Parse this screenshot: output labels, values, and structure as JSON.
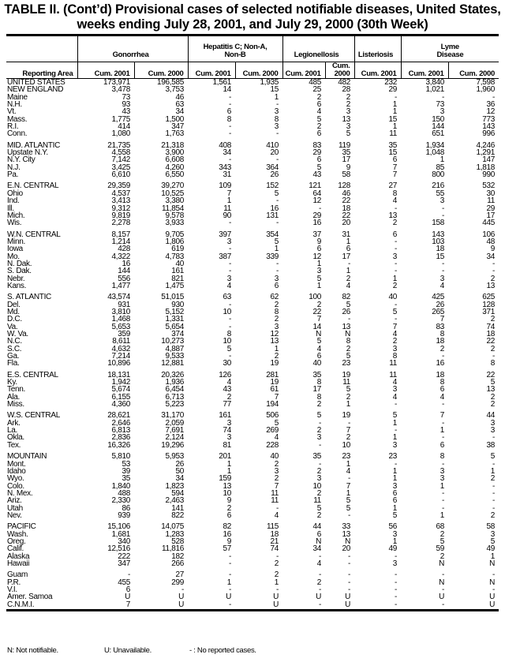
{
  "title_line1": "TABLE II. (Cont’d) Provisional cases of selected notifiable diseases, United States,",
  "title_line2": "weeks ending July 28, 2001, and July 29, 2000 (30th Week)",
  "header": {
    "reporting_area": "Reporting Area",
    "diseases": [
      "Gonorrhea",
      "Hepatitis C; Non-A, Non-B",
      "Legionellosis",
      "Listeriosis",
      "Lyme Disease"
    ],
    "subcolumns": [
      "Cum. 2001",
      "Cum. 2000",
      "Cum. 2001",
      "Cum. 2000",
      "Cum. 2001",
      "Cum. 2000",
      "Cum. 2001",
      "Cum. 2001",
      "Cum. 2000"
    ]
  },
  "groups": [
    {
      "rows": [
        [
          "UNITED STATES",
          "173,971",
          "196,585",
          "1,561",
          "1,935",
          "485",
          "482",
          "232",
          "3,840",
          "7,598"
        ]
      ]
    },
    {
      "rows": [
        [
          "NEW ENGLAND",
          "3,478",
          "3,753",
          "14",
          "15",
          "25",
          "28",
          "29",
          "1,021",
          "1,960"
        ],
        [
          "Maine",
          "73",
          "46",
          "-",
          "1",
          "2",
          "2",
          "-",
          "-",
          "-"
        ],
        [
          "N.H.",
          "93",
          "63",
          "-",
          "-",
          "6",
          "2",
          "1",
          "73",
          "36"
        ],
        [
          "Vt.",
          "43",
          "34",
          "6",
          "3",
          "4",
          "3",
          "1",
          "3",
          "12"
        ],
        [
          "Mass.",
          "1,775",
          "1,500",
          "8",
          "8",
          "5",
          "13",
          "15",
          "150",
          "773"
        ],
        [
          "R.I.",
          "414",
          "347",
          "-",
          "3",
          "2",
          "3",
          "1",
          "144",
          "143"
        ],
        [
          "Conn.",
          "1,080",
          "1,763",
          "-",
          "-",
          "6",
          "5",
          "11",
          "651",
          "996"
        ]
      ]
    },
    {
      "rows": [
        [
          "MID. ATLANTIC",
          "21,735",
          "21,318",
          "408",
          "410",
          "83",
          "119",
          "35",
          "1,934",
          "4,246"
        ],
        [
          "Upstate N.Y.",
          "4,558",
          "3,900",
          "34",
          "20",
          "29",
          "35",
          "15",
          "1,048",
          "1,291"
        ],
        [
          "N.Y. City",
          "7,142",
          "6,608",
          "-",
          "-",
          "6",
          "17",
          "6",
          "1",
          "147"
        ],
        [
          "N.J.",
          "3,425",
          "4,260",
          "343",
          "364",
          "5",
          "9",
          "7",
          "85",
          "1,818"
        ],
        [
          "Pa.",
          "6,610",
          "6,550",
          "31",
          "26",
          "43",
          "58",
          "7",
          "800",
          "990"
        ]
      ]
    },
    {
      "rows": [
        [
          "E.N. CENTRAL",
          "29,359",
          "39,270",
          "109",
          "152",
          "121",
          "128",
          "27",
          "216",
          "532"
        ],
        [
          "Ohio",
          "4,537",
          "10,525",
          "7",
          "5",
          "64",
          "46",
          "8",
          "55",
          "30"
        ],
        [
          "Ind.",
          "3,413",
          "3,380",
          "1",
          "-",
          "12",
          "22",
          "4",
          "3",
          "11"
        ],
        [
          "Ill.",
          "9,312",
          "11,854",
          "11",
          "16",
          "-",
          "18",
          "-",
          "-",
          "29"
        ],
        [
          "Mich.",
          "9,819",
          "9,578",
          "90",
          "131",
          "29",
          "22",
          "13",
          "-",
          "17"
        ],
        [
          "Wis.",
          "2,278",
          "3,933",
          "-",
          "-",
          "16",
          "20",
          "2",
          "158",
          "445"
        ]
      ]
    },
    {
      "rows": [
        [
          "W.N. CENTRAL",
          "8,157",
          "9,705",
          "397",
          "354",
          "37",
          "31",
          "6",
          "143",
          "106"
        ],
        [
          "Minn.",
          "1,214",
          "1,806",
          "3",
          "5",
          "9",
          "1",
          "-",
          "103",
          "48"
        ],
        [
          "Iowa",
          "428",
          "619",
          "-",
          "1",
          "6",
          "6",
          "-",
          "18",
          "9"
        ],
        [
          "Mo.",
          "4,322",
          "4,783",
          "387",
          "339",
          "12",
          "17",
          "3",
          "15",
          "34"
        ],
        [
          "N. Dak.",
          "16",
          "40",
          "-",
          "-",
          "1",
          "-",
          "-",
          "-",
          "-"
        ],
        [
          "S. Dak.",
          "144",
          "161",
          "-",
          "-",
          "3",
          "1",
          "-",
          "-",
          "-"
        ],
        [
          "Nebr.",
          "556",
          "821",
          "3",
          "3",
          "5",
          "2",
          "1",
          "3",
          "2"
        ],
        [
          "Kans.",
          "1,477",
          "1,475",
          "4",
          "6",
          "1",
          "4",
          "2",
          "4",
          "13"
        ]
      ]
    },
    {
      "rows": [
        [
          "S. ATLANTIC",
          "43,574",
          "51,015",
          "63",
          "62",
          "100",
          "82",
          "40",
          "425",
          "625"
        ],
        [
          "Del.",
          "931",
          "930",
          "-",
          "2",
          "2",
          "5",
          "-",
          "26",
          "128"
        ],
        [
          "Md.",
          "3,810",
          "5,152",
          "10",
          "8",
          "22",
          "26",
          "5",
          "265",
          "371"
        ],
        [
          "D.C.",
          "1,468",
          "1,331",
          "-",
          "2",
          "7",
          "-",
          "-",
          "7",
          "2"
        ],
        [
          "Va.",
          "5,653",
          "5,654",
          "-",
          "3",
          "14",
          "13",
          "7",
          "83",
          "74"
        ],
        [
          "W. Va.",
          "359",
          "374",
          "8",
          "12",
          "N",
          "N",
          "4",
          "8",
          "18"
        ],
        [
          "N.C.",
          "8,611",
          "10,273",
          "10",
          "13",
          "5",
          "8",
          "2",
          "18",
          "22"
        ],
        [
          "S.C.",
          "4,632",
          "4,887",
          "5",
          "1",
          "4",
          "2",
          "3",
          "2",
          "2"
        ],
        [
          "Ga.",
          "7,214",
          "9,533",
          "-",
          "2",
          "6",
          "5",
          "8",
          "-",
          "-"
        ],
        [
          "Fla.",
          "10,896",
          "12,881",
          "30",
          "19",
          "40",
          "23",
          "11",
          "16",
          "8"
        ]
      ]
    },
    {
      "rows": [
        [
          "E.S. CENTRAL",
          "18,131",
          "20,326",
          "126",
          "281",
          "35",
          "19",
          "11",
          "18",
          "22"
        ],
        [
          "Ky.",
          "1,942",
          "1,936",
          "4",
          "19",
          "8",
          "11",
          "4",
          "8",
          "5"
        ],
        [
          "Tenn.",
          "5,674",
          "6,454",
          "43",
          "61",
          "17",
          "5",
          "3",
          "6",
          "13"
        ],
        [
          "Ala.",
          "6,155",
          "6,713",
          "2",
          "7",
          "8",
          "2",
          "4",
          "4",
          "2"
        ],
        [
          "Miss.",
          "4,360",
          "5,223",
          "77",
          "194",
          "2",
          "1",
          "-",
          "-",
          "2"
        ]
      ]
    },
    {
      "rows": [
        [
          "W.S. CENTRAL",
          "28,621",
          "31,170",
          "161",
          "506",
          "5",
          "19",
          "5",
          "7",
          "44"
        ],
        [
          "Ark.",
          "2,646",
          "2,059",
          "3",
          "5",
          "-",
          "-",
          "1",
          "-",
          "3"
        ],
        [
          "La.",
          "6,813",
          "7,691",
          "74",
          "269",
          "2",
          "7",
          "-",
          "1",
          "3"
        ],
        [
          "Okla.",
          "2,836",
          "2,124",
          "3",
          "4",
          "3",
          "2",
          "1",
          "-",
          "-"
        ],
        [
          "Tex.",
          "16,326",
          "19,296",
          "81",
          "228",
          "-",
          "10",
          "3",
          "6",
          "38"
        ]
      ]
    },
    {
      "rows": [
        [
          "MOUNTAIN",
          "5,810",
          "5,953",
          "201",
          "40",
          "35",
          "23",
          "23",
          "8",
          "5"
        ],
        [
          "Mont.",
          "53",
          "26",
          "1",
          "2",
          "-",
          "1",
          "-",
          "-",
          "-"
        ],
        [
          "Idaho",
          "39",
          "50",
          "1",
          "3",
          "2",
          "4",
          "1",
          "3",
          "1"
        ],
        [
          "Wyo.",
          "35",
          "34",
          "159",
          "2",
          "3",
          "-",
          "1",
          "3",
          "2"
        ],
        [
          "Colo.",
          "1,840",
          "1,823",
          "13",
          "7",
          "10",
          "7",
          "3",
          "1",
          "-"
        ],
        [
          "N. Mex.",
          "488",
          "594",
          "10",
          "11",
          "2",
          "1",
          "6",
          "-",
          "-"
        ],
        [
          "Ariz.",
          "2,330",
          "2,463",
          "9",
          "11",
          "11",
          "5",
          "6",
          "-",
          "-"
        ],
        [
          "Utah",
          "86",
          "141",
          "2",
          "-",
          "5",
          "5",
          "1",
          "-",
          "-"
        ],
        [
          "Nev.",
          "939",
          "822",
          "6",
          "4",
          "2",
          "-",
          "5",
          "1",
          "2"
        ]
      ]
    },
    {
      "rows": [
        [
          "PACIFIC",
          "15,106",
          "14,075",
          "82",
          "115",
          "44",
          "33",
          "56",
          "68",
          "58"
        ],
        [
          "Wash.",
          "1,681",
          "1,283",
          "16",
          "18",
          "6",
          "13",
          "3",
          "2",
          "3"
        ],
        [
          "Oreg.",
          "340",
          "528",
          "9",
          "21",
          "N",
          "N",
          "1",
          "5",
          "5"
        ],
        [
          "Calif.",
          "12,516",
          "11,816",
          "57",
          "74",
          "34",
          "20",
          "49",
          "59",
          "49"
        ],
        [
          "Alaska",
          "222",
          "182",
          "-",
          "-",
          "-",
          "-",
          "-",
          "2",
          "1"
        ],
        [
          "Hawaii",
          "347",
          "266",
          "-",
          "2",
          "4",
          "-",
          "3",
          "N",
          "N"
        ]
      ]
    },
    {
      "rows": [
        [
          "Guam",
          "-",
          "27",
          "-",
          "2",
          "-",
          "-",
          "-",
          "-",
          "-"
        ],
        [
          "P.R.",
          "455",
          "299",
          "1",
          "1",
          "2",
          "-",
          "-",
          "N",
          "N"
        ],
        [
          "V.I.",
          "6",
          "-",
          "-",
          "-",
          "-",
          "-",
          "-",
          "-",
          "-"
        ],
        [
          "Amer. Samoa",
          "U",
          "U",
          "U",
          "U",
          "U",
          "U",
          "-",
          "U",
          "U"
        ],
        [
          "C.N.M.I.",
          "7",
          "U",
          "-",
          "U",
          "-",
          "U",
          "-",
          "-",
          "U"
        ]
      ]
    }
  ],
  "footnotes": [
    "N: Not notifiable.",
    "U: Unavailable.",
    "- : No reported cases."
  ]
}
